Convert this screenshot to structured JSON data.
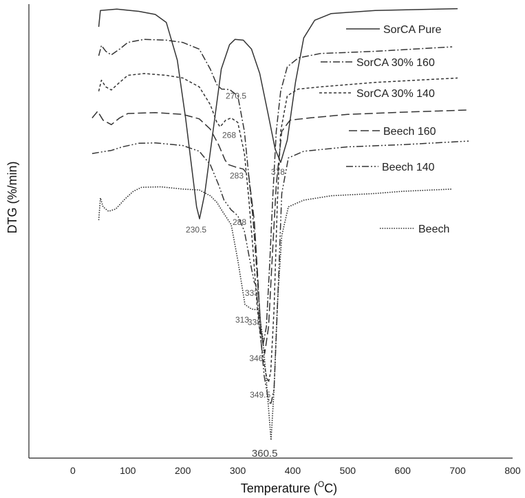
{
  "chart_data": {
    "type": "line",
    "title": "",
    "xlabel": "Temperature (",
    "xlabel_sup": "O",
    "xlabel_unit": "C)",
    "ylabel": "DTG (%/min)",
    "xlim": [
      -80,
      800
    ],
    "xticks": [
      "0",
      "100",
      "200",
      "300",
      "400",
      "500",
      "600",
      "700",
      "800"
    ],
    "xtick_values": [
      0,
      100,
      200,
      300,
      400,
      500,
      600,
      700,
      800
    ],
    "ylim": [
      0,
      100
    ],
    "y_ticks_shown": false,
    "grid": false,
    "legend_position": "right, beside each curve",
    "series": [
      {
        "name": "SorCA Pure",
        "dash": "",
        "color": "#333333",
        "points": [
          [
            47,
            95.5
          ],
          [
            50,
            99.2
          ],
          [
            80,
            99.5
          ],
          [
            120,
            99.0
          ],
          [
            150,
            98.3
          ],
          [
            170,
            96.5
          ],
          [
            190,
            88.0
          ],
          [
            205,
            75.0
          ],
          [
            215,
            65.0
          ],
          [
            225,
            55.0
          ],
          [
            230.5,
            52.3
          ],
          [
            240,
            58.0
          ],
          [
            255,
            72.0
          ],
          [
            270,
            86.0
          ],
          [
            285,
            91.5
          ],
          [
            295,
            92.7
          ],
          [
            310,
            92.5
          ],
          [
            325,
            90.5
          ],
          [
            340,
            85.0
          ],
          [
            355,
            76.0
          ],
          [
            368,
            68.0
          ],
          [
            378,
            65.0
          ],
          [
            390,
            70.0
          ],
          [
            405,
            83.0
          ],
          [
            420,
            93.0
          ],
          [
            440,
            97.0
          ],
          [
            470,
            98.5
          ],
          [
            550,
            99.2
          ],
          [
            700,
            99.6
          ]
        ]
      },
      {
        "name": "SorCA 30% 160",
        "dash": "10,3,2,3",
        "color": "#333333",
        "points": [
          [
            47,
            89.0
          ],
          [
            52,
            91.3
          ],
          [
            60,
            90.0
          ],
          [
            70,
            89.2
          ],
          [
            85,
            90.5
          ],
          [
            100,
            92.0
          ],
          [
            130,
            92.7
          ],
          [
            170,
            92.5
          ],
          [
            200,
            92.0
          ],
          [
            230,
            90.5
          ],
          [
            250,
            86.0
          ],
          [
            262,
            82.5
          ],
          [
            270.5,
            81.5
          ],
          [
            285,
            81.4
          ],
          [
            300,
            80.0
          ],
          [
            312,
            72.0
          ],
          [
            320,
            62.0
          ],
          [
            328,
            52.0
          ],
          [
            335,
            40.0
          ],
          [
            342,
            28.0
          ],
          [
            346,
            24.0
          ],
          [
            352,
            28.0
          ],
          [
            358,
            42.0
          ],
          [
            364,
            58.0
          ],
          [
            370,
            72.0
          ],
          [
            378,
            81.0
          ],
          [
            390,
            86.5
          ],
          [
            410,
            88.5
          ],
          [
            450,
            89.5
          ],
          [
            550,
            90.0
          ],
          [
            690,
            91.0
          ]
        ]
      },
      {
        "name": "SorCA 30% 140",
        "dash": "4,3",
        "color": "#333333",
        "points": [
          [
            47,
            81.0
          ],
          [
            52,
            83.5
          ],
          [
            60,
            82.0
          ],
          [
            70,
            81.3
          ],
          [
            85,
            83.0
          ],
          [
            100,
            84.6
          ],
          [
            130,
            85.0
          ],
          [
            170,
            84.6
          ],
          [
            200,
            84.0
          ],
          [
            230,
            82.0
          ],
          [
            250,
            78.0
          ],
          [
            262,
            74.0
          ],
          [
            268,
            73.0
          ],
          [
            278,
            74.5
          ],
          [
            288,
            75.0
          ],
          [
            300,
            74.0
          ],
          [
            312,
            67.0
          ],
          [
            320,
            57.0
          ],
          [
            328,
            45.0
          ],
          [
            335,
            33.0
          ],
          [
            340,
            27.0
          ],
          [
            346,
            21.0
          ],
          [
            352,
            17.0
          ],
          [
            356,
            15.5
          ],
          [
            360,
            18.0
          ],
          [
            366,
            32.0
          ],
          [
            372,
            56.0
          ],
          [
            378,
            72.0
          ],
          [
            390,
            80.0
          ],
          [
            410,
            81.5
          ],
          [
            450,
            82.0
          ],
          [
            550,
            83.0
          ],
          [
            700,
            84.0
          ]
        ]
      },
      {
        "name": "Beech 160",
        "dash": "12,5",
        "color": "#333333",
        "points": [
          [
            35,
            75.0
          ],
          [
            45,
            76.5
          ],
          [
            55,
            74.5
          ],
          [
            70,
            73.5
          ],
          [
            85,
            75.0
          ],
          [
            100,
            76.0
          ],
          [
            150,
            76.2
          ],
          [
            200,
            75.8
          ],
          [
            230,
            74.8
          ],
          [
            250,
            72.5
          ],
          [
            265,
            69.0
          ],
          [
            277,
            65.5
          ],
          [
            283,
            64.5
          ],
          [
            295,
            64.0
          ],
          [
            310,
            63.5
          ],
          [
            320,
            62.0
          ],
          [
            330,
            52.0
          ],
          [
            337,
            38.0
          ],
          [
            342,
            27.0
          ],
          [
            349,
            22.0
          ],
          [
            356,
            28.0
          ],
          [
            362,
            42.0
          ],
          [
            370,
            60.0
          ],
          [
            380,
            72.0
          ],
          [
            395,
            74.5
          ],
          [
            430,
            75.0
          ],
          [
            500,
            75.8
          ],
          [
            600,
            76.3
          ],
          [
            720,
            76.8
          ]
        ]
      },
      {
        "name": "Beech 140",
        "dash": "10,3,2,3,2,3",
        "color": "#333333",
        "points": [
          [
            35,
            67.0
          ],
          [
            50,
            67.3
          ],
          [
            70,
            67.7
          ],
          [
            90,
            68.5
          ],
          [
            120,
            69.3
          ],
          [
            150,
            69.4
          ],
          [
            200,
            68.8
          ],
          [
            230,
            67.5
          ],
          [
            250,
            64.5
          ],
          [
            265,
            60.0
          ],
          [
            275,
            56.5
          ],
          [
            288,
            54.3
          ],
          [
            300,
            53.0
          ],
          [
            312,
            49.5
          ],
          [
            322,
            43.0
          ],
          [
            330,
            38.0
          ],
          [
            333,
            37.5
          ],
          [
            340,
            28.0
          ],
          [
            348,
            17.0
          ],
          [
            355,
            12.0
          ],
          [
            360,
            10.5
          ],
          [
            366,
            14.0
          ],
          [
            372,
            32.0
          ],
          [
            380,
            58.0
          ],
          [
            392,
            66.0
          ],
          [
            420,
            67.5
          ],
          [
            500,
            68.5
          ],
          [
            600,
            69.0
          ],
          [
            720,
            69.8
          ]
        ]
      },
      {
        "name": "Beech",
        "dash": "1.6,1.8",
        "color": "#333333",
        "points": [
          [
            47,
            52.0
          ],
          [
            50,
            57.0
          ],
          [
            55,
            55.0
          ],
          [
            65,
            54.0
          ],
          [
            78,
            54.5
          ],
          [
            95,
            56.8
          ],
          [
            110,
            58.5
          ],
          [
            125,
            59.4
          ],
          [
            160,
            59.5
          ],
          [
            200,
            59.0
          ],
          [
            230,
            58.8
          ],
          [
            250,
            57.5
          ],
          [
            262,
            56.0
          ],
          [
            272,
            54.0
          ],
          [
            288,
            51.0
          ],
          [
            300,
            43.0
          ],
          [
            313,
            33.0
          ],
          [
            325,
            32.0
          ],
          [
            338,
            31.8
          ],
          [
            345,
            26.0
          ],
          [
            352,
            16.0
          ],
          [
            357,
            8.0
          ],
          [
            360.5,
            2.5
          ],
          [
            366,
            14.0
          ],
          [
            372,
            33.0
          ],
          [
            380,
            48.5
          ],
          [
            392,
            55.0
          ],
          [
            420,
            56.5
          ],
          [
            470,
            57.5
          ],
          [
            550,
            58.0
          ],
          [
            600,
            58.5
          ],
          [
            690,
            59.0
          ]
        ]
      }
    ],
    "annotations": [
      {
        "text": "230.5",
        "x": 230.5,
        "y": 52.3
      },
      {
        "text": "270.5",
        "x": 270.5,
        "y": 81.5
      },
      {
        "text": "268",
        "x": 268,
        "y": 73.0
      },
      {
        "text": "283",
        "x": 283,
        "y": 64.5
      },
      {
        "text": "288",
        "x": 288,
        "y": 54.3
      },
      {
        "text": "378",
        "x": 378,
        "y": 65.0
      },
      {
        "text": "333",
        "x": 333,
        "y": 37.5
      },
      {
        "text": "313",
        "x": 313,
        "y": 33.0
      },
      {
        "text": "338",
        "x": 338,
        "y": 31.8
      },
      {
        "text": "346",
        "x": 346,
        "y": 24.0
      },
      {
        "text": "349.5",
        "x": 349.5,
        "y": 15.5
      },
      {
        "text": "360.5",
        "x": 360.5,
        "y": 2.5
      }
    ]
  }
}
